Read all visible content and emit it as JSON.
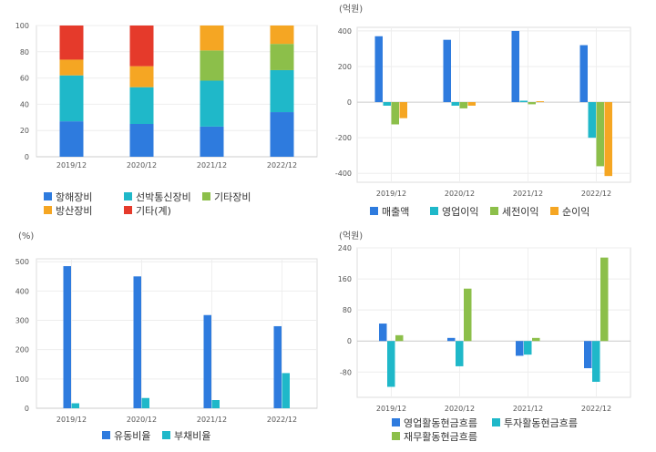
{
  "colors": {
    "blue": "#2e7bde",
    "cyan": "#1fb8c9",
    "green": "#8cbf4a",
    "orange": "#f5a623",
    "red": "#e53a2b"
  },
  "chart_data": [
    {
      "id": "c1",
      "type": "bar",
      "stacked": true,
      "title": "",
      "unit": "",
      "categories": [
        "2019/12",
        "2020/12",
        "2021/12",
        "2022/12"
      ],
      "ylim": [
        0,
        100
      ],
      "yticks": [
        0,
        20,
        40,
        60,
        80,
        100
      ],
      "grid": true,
      "legend": "bottom",
      "series": [
        {
          "name": "항해장비",
          "color": "blue",
          "values": [
            27,
            25,
            23,
            34
          ]
        },
        {
          "name": "선박통신장비",
          "color": "cyan",
          "values": [
            35,
            28,
            35,
            32
          ]
        },
        {
          "name": "기타장비",
          "color": "green",
          "values": [
            0,
            0,
            23,
            20
          ]
        },
        {
          "name": "방산장비",
          "color": "orange",
          "values": [
            12,
            16,
            19,
            14
          ]
        },
        {
          "name": "기타(계)",
          "color": "red",
          "values": [
            26,
            31,
            0,
            0
          ]
        }
      ]
    },
    {
      "id": "c2",
      "type": "bar",
      "title": "",
      "unit": "(억원)",
      "categories": [
        "2019/12",
        "2020/12",
        "2021/12",
        "2022/12"
      ],
      "ylim": [
        -450,
        420
      ],
      "yticks": [
        -400,
        -200,
        0,
        200,
        400
      ],
      "grid": true,
      "legend": "bottom",
      "series": [
        {
          "name": "매출액",
          "color": "blue",
          "values": [
            370,
            350,
            400,
            320
          ]
        },
        {
          "name": "영업이익",
          "color": "cyan",
          "values": [
            -20,
            -20,
            8,
            -200
          ]
        },
        {
          "name": "세전이익",
          "color": "green",
          "values": [
            -125,
            -35,
            -12,
            -360
          ]
        },
        {
          "name": "순이익",
          "color": "orange",
          "values": [
            -90,
            -20,
            5,
            -415
          ]
        }
      ]
    },
    {
      "id": "c3",
      "type": "bar",
      "title": "",
      "unit": "(%)",
      "categories": [
        "2019/12",
        "2020/12",
        "2021/12",
        "2022/12"
      ],
      "ylim": [
        0,
        510
      ],
      "yticks": [
        0,
        100,
        200,
        300,
        400,
        500
      ],
      "grid": true,
      "legend": "bottom",
      "series": [
        {
          "name": "유동비율",
          "color": "blue",
          "values": [
            485,
            450,
            318,
            280
          ]
        },
        {
          "name": "부채비율",
          "color": "cyan",
          "values": [
            17,
            35,
            28,
            120
          ]
        }
      ]
    },
    {
      "id": "c4",
      "type": "bar",
      "title": "",
      "unit": "(억원)",
      "categories": [
        "2019/12",
        "2020/12",
        "2021/12",
        "2022/12"
      ],
      "ylim": [
        -145,
        240
      ],
      "yticks": [
        -80,
        0,
        80,
        160,
        240
      ],
      "grid": true,
      "legend": "bottom",
      "series": [
        {
          "name": "영업활동현금흐름",
          "color": "blue",
          "values": [
            45,
            8,
            -38,
            -70
          ]
        },
        {
          "name": "투자활동현금흐름",
          "color": "cyan",
          "values": [
            -118,
            -65,
            -35,
            -105
          ]
        },
        {
          "name": "재무활동현금흐름",
          "color": "green",
          "values": [
            15,
            135,
            8,
            215
          ]
        }
      ]
    }
  ]
}
